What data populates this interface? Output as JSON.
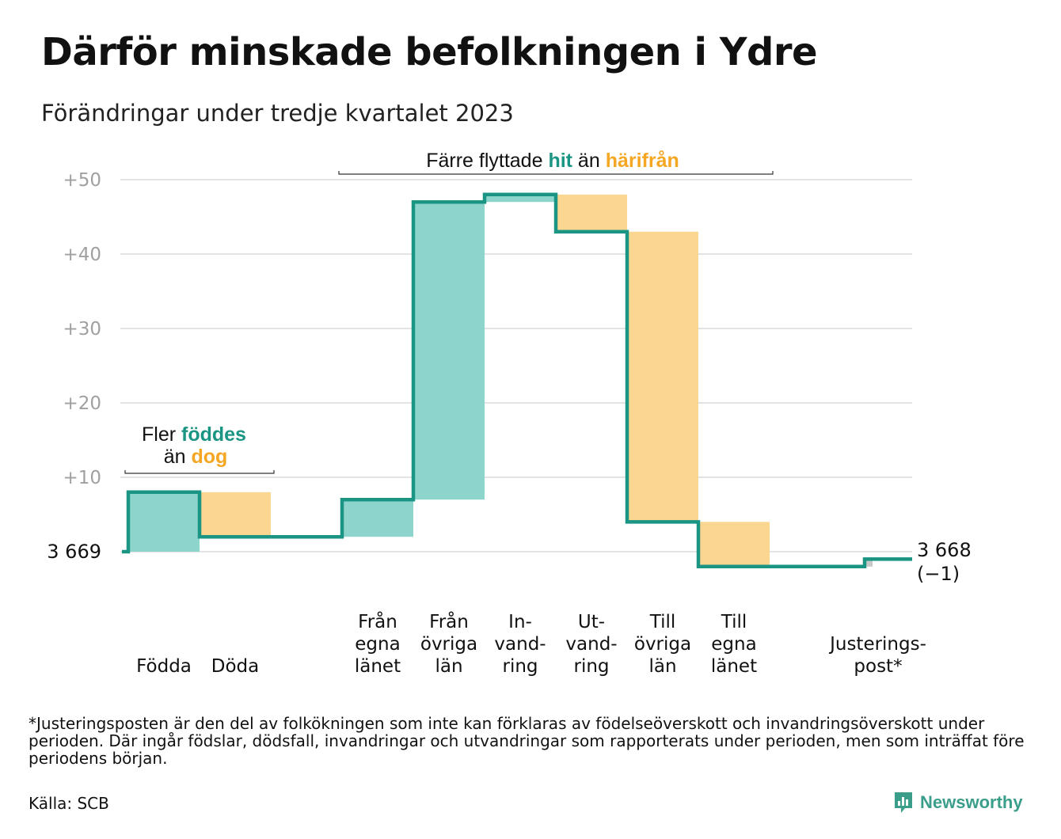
{
  "title": "Därför minskade befolkningen i Ydre",
  "subtitle": "Förändringar under tredje kvartalet 2023",
  "chart_data": {
    "type": "waterfall",
    "start_label": "3  669",
    "end_label": "3 668",
    "end_change_label": "(−1)",
    "start_value": 3669,
    "end_value": 3668,
    "ylim": [
      -2,
      52
    ],
    "yticks": [
      {
        "value": 10,
        "label": "+10"
      },
      {
        "value": 20,
        "label": "+20"
      },
      {
        "value": 30,
        "label": "+30"
      },
      {
        "value": 40,
        "label": "+40"
      },
      {
        "value": 50,
        "label": "+50"
      }
    ],
    "steps": [
      {
        "name": "Födda",
        "label_lines": [
          "Födda"
        ],
        "change": 8,
        "kind": "in"
      },
      {
        "name": "Döda",
        "label_lines": [
          "Döda"
        ],
        "change": -6,
        "kind": "out"
      },
      {
        "name": "gap",
        "label_lines": [],
        "change": 0,
        "kind": "none"
      },
      {
        "name": "Från egna länet",
        "label_lines": [
          "Från",
          "egna",
          "länet"
        ],
        "change": 5,
        "kind": "in"
      },
      {
        "name": "Från övriga län",
        "label_lines": [
          "Från",
          "övriga",
          "län"
        ],
        "change": 40,
        "kind": "in"
      },
      {
        "name": "Invandring",
        "label_lines": [
          "In-",
          "vand-",
          "ring"
        ],
        "change": 1,
        "kind": "in"
      },
      {
        "name": "Utvandring",
        "label_lines": [
          "Ut-",
          "vand-",
          "ring"
        ],
        "change": -5,
        "kind": "out"
      },
      {
        "name": "Till övriga län",
        "label_lines": [
          "Till",
          "övriga",
          "län"
        ],
        "change": -39,
        "kind": "out"
      },
      {
        "name": "Till egna länet",
        "label_lines": [
          "Till",
          "egna",
          "länet"
        ],
        "change": -6,
        "kind": "out"
      },
      {
        "name": "gap",
        "label_lines": [],
        "change": 0,
        "kind": "none"
      },
      {
        "name": "Justeringspost*",
        "label_lines": [
          "Justerings-",
          "post*"
        ],
        "change": 1,
        "kind": "adjust"
      }
    ],
    "annotations": [
      {
        "id": "births",
        "parts": [
          [
            {
              "text": "Fler ",
              "style": "plain"
            },
            {
              "text": "föddes",
              "style": "in"
            }
          ],
          [
            {
              "text": "än ",
              "style": "plain"
            },
            {
              "text": "dog",
              "style": "out"
            }
          ]
        ]
      },
      {
        "id": "moves",
        "parts": [
          [
            {
              "text": "Färre flyttade ",
              "style": "plain"
            },
            {
              "text": "hit",
              "style": "in"
            },
            {
              "text": "  än ",
              "style": "plain"
            },
            {
              "text": "härifrån",
              "style": "out"
            }
          ]
        ]
      }
    ],
    "colors": {
      "in_fill": "#8dd5cc",
      "out_fill": "#fad690",
      "adjust_fill": "#c8c8c8",
      "line": "#1a9583",
      "in_text": "#1a9583",
      "out_text": "#f5a623",
      "grid": "#e3e3e3",
      "tick_text": "#a0a0a0"
    }
  },
  "footnote": "*Justeringsposten är den del av folkökningen som inte kan förklaras av födelseöverskott och invandringsöverskott under perioden. Där ingår födslar, dödsfall, invandringar och utvandringar som rapporterats under perioden, men som inträffat före periodens början.",
  "source": "Källa: SCB",
  "brand": {
    "name": "Newsworthy",
    "icon": "bar-chart-logo-icon",
    "color": "#3a9e8a"
  }
}
